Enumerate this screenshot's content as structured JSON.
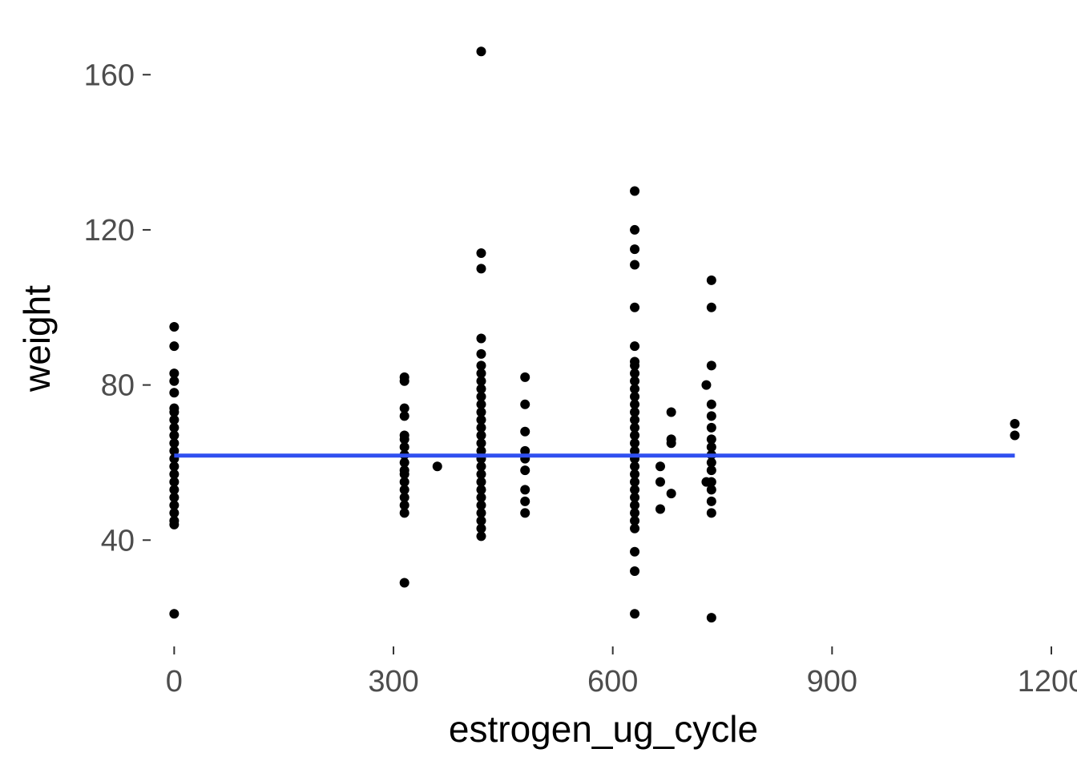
{
  "chart_data": {
    "type": "scatter",
    "title": "",
    "xlabel": "estrogen_ug_cycle",
    "ylabel": "weight",
    "xlim": [
      -30,
      1200
    ],
    "ylim": [
      13,
      171
    ],
    "xticks": [
      0,
      300,
      600,
      900,
      1200
    ],
    "xtick_labels": [
      "0",
      "300",
      "600",
      "900",
      "1200"
    ],
    "yticks": [
      40,
      80,
      120,
      160
    ],
    "ytick_labels": [
      "40",
      "80",
      "120",
      "160"
    ],
    "grid": false,
    "point_color": "#000000",
    "trend_color": "#3050f0",
    "trend_line": {
      "x": [
        0,
        1150
      ],
      "y": [
        61.8,
        61.8
      ]
    },
    "points": [
      {
        "x": 0,
        "y": 95
      },
      {
        "x": 0,
        "y": 90
      },
      {
        "x": 0,
        "y": 83
      },
      {
        "x": 0,
        "y": 81
      },
      {
        "x": 0,
        "y": 78
      },
      {
        "x": 0,
        "y": 74
      },
      {
        "x": 0,
        "y": 73
      },
      {
        "x": 0,
        "y": 71
      },
      {
        "x": 0,
        "y": 69
      },
      {
        "x": 0,
        "y": 67
      },
      {
        "x": 0,
        "y": 65
      },
      {
        "x": 0,
        "y": 63
      },
      {
        "x": 0,
        "y": 61
      },
      {
        "x": 0,
        "y": 59
      },
      {
        "x": 0,
        "y": 57
      },
      {
        "x": 0,
        "y": 55
      },
      {
        "x": 0,
        "y": 53
      },
      {
        "x": 0,
        "y": 51
      },
      {
        "x": 0,
        "y": 49
      },
      {
        "x": 0,
        "y": 47
      },
      {
        "x": 0,
        "y": 45
      },
      {
        "x": 0,
        "y": 44
      },
      {
        "x": 0,
        "y": 21
      },
      {
        "x": 315,
        "y": 82
      },
      {
        "x": 315,
        "y": 81
      },
      {
        "x": 315,
        "y": 74
      },
      {
        "x": 315,
        "y": 72
      },
      {
        "x": 315,
        "y": 67
      },
      {
        "x": 315,
        "y": 66
      },
      {
        "x": 315,
        "y": 64
      },
      {
        "x": 315,
        "y": 62
      },
      {
        "x": 315,
        "y": 60
      },
      {
        "x": 315,
        "y": 58
      },
      {
        "x": 315,
        "y": 57
      },
      {
        "x": 315,
        "y": 55
      },
      {
        "x": 315,
        "y": 53
      },
      {
        "x": 315,
        "y": 51
      },
      {
        "x": 315,
        "y": 49
      },
      {
        "x": 315,
        "y": 47
      },
      {
        "x": 315,
        "y": 29
      },
      {
        "x": 360,
        "y": 59
      },
      {
        "x": 420,
        "y": 166
      },
      {
        "x": 420,
        "y": 114
      },
      {
        "x": 420,
        "y": 110
      },
      {
        "x": 420,
        "y": 92
      },
      {
        "x": 420,
        "y": 88
      },
      {
        "x": 420,
        "y": 85
      },
      {
        "x": 420,
        "y": 83
      },
      {
        "x": 420,
        "y": 81
      },
      {
        "x": 420,
        "y": 79
      },
      {
        "x": 420,
        "y": 77
      },
      {
        "x": 420,
        "y": 75
      },
      {
        "x": 420,
        "y": 73
      },
      {
        "x": 420,
        "y": 71
      },
      {
        "x": 420,
        "y": 69
      },
      {
        "x": 420,
        "y": 67
      },
      {
        "x": 420,
        "y": 65
      },
      {
        "x": 420,
        "y": 63
      },
      {
        "x": 420,
        "y": 61
      },
      {
        "x": 420,
        "y": 59
      },
      {
        "x": 420,
        "y": 57
      },
      {
        "x": 420,
        "y": 55
      },
      {
        "x": 420,
        "y": 53
      },
      {
        "x": 420,
        "y": 51
      },
      {
        "x": 420,
        "y": 49
      },
      {
        "x": 420,
        "y": 47
      },
      {
        "x": 420,
        "y": 45
      },
      {
        "x": 420,
        "y": 43
      },
      {
        "x": 420,
        "y": 41
      },
      {
        "x": 480,
        "y": 82
      },
      {
        "x": 480,
        "y": 75
      },
      {
        "x": 480,
        "y": 68
      },
      {
        "x": 480,
        "y": 63
      },
      {
        "x": 480,
        "y": 61
      },
      {
        "x": 480,
        "y": 58
      },
      {
        "x": 480,
        "y": 53
      },
      {
        "x": 480,
        "y": 50
      },
      {
        "x": 480,
        "y": 47
      },
      {
        "x": 630,
        "y": 130
      },
      {
        "x": 630,
        "y": 120
      },
      {
        "x": 630,
        "y": 115
      },
      {
        "x": 630,
        "y": 111
      },
      {
        "x": 630,
        "y": 100
      },
      {
        "x": 630,
        "y": 90
      },
      {
        "x": 630,
        "y": 86
      },
      {
        "x": 630,
        "y": 85
      },
      {
        "x": 630,
        "y": 83
      },
      {
        "x": 630,
        "y": 81
      },
      {
        "x": 630,
        "y": 79
      },
      {
        "x": 630,
        "y": 77
      },
      {
        "x": 630,
        "y": 75
      },
      {
        "x": 630,
        "y": 73
      },
      {
        "x": 630,
        "y": 71
      },
      {
        "x": 630,
        "y": 69
      },
      {
        "x": 630,
        "y": 67
      },
      {
        "x": 630,
        "y": 65
      },
      {
        "x": 630,
        "y": 63
      },
      {
        "x": 630,
        "y": 61
      },
      {
        "x": 630,
        "y": 59
      },
      {
        "x": 630,
        "y": 57
      },
      {
        "x": 630,
        "y": 55
      },
      {
        "x": 630,
        "y": 53
      },
      {
        "x": 630,
        "y": 51
      },
      {
        "x": 630,
        "y": 49
      },
      {
        "x": 630,
        "y": 47
      },
      {
        "x": 630,
        "y": 45
      },
      {
        "x": 630,
        "y": 43
      },
      {
        "x": 630,
        "y": 37
      },
      {
        "x": 630,
        "y": 32
      },
      {
        "x": 630,
        "y": 21
      },
      {
        "x": 665,
        "y": 59
      },
      {
        "x": 665,
        "y": 55
      },
      {
        "x": 665,
        "y": 48
      },
      {
        "x": 680,
        "y": 73
      },
      {
        "x": 680,
        "y": 66
      },
      {
        "x": 680,
        "y": 65
      },
      {
        "x": 680,
        "y": 52
      },
      {
        "x": 735,
        "y": 107
      },
      {
        "x": 735,
        "y": 100
      },
      {
        "x": 735,
        "y": 85
      },
      {
        "x": 728,
        "y": 80
      },
      {
        "x": 735,
        "y": 75
      },
      {
        "x": 735,
        "y": 72
      },
      {
        "x": 735,
        "y": 69
      },
      {
        "x": 735,
        "y": 66
      },
      {
        "x": 735,
        "y": 64
      },
      {
        "x": 735,
        "y": 62
      },
      {
        "x": 735,
        "y": 60
      },
      {
        "x": 735,
        "y": 58
      },
      {
        "x": 728,
        "y": 55
      },
      {
        "x": 735,
        "y": 55
      },
      {
        "x": 735,
        "y": 53
      },
      {
        "x": 735,
        "y": 50
      },
      {
        "x": 735,
        "y": 47
      },
      {
        "x": 735,
        "y": 20
      },
      {
        "x": 1150,
        "y": 70
      },
      {
        "x": 1150,
        "y": 67
      }
    ]
  }
}
